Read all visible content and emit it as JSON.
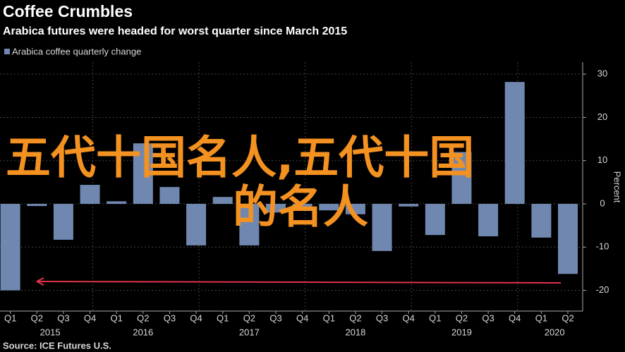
{
  "chart_data": {
    "type": "bar",
    "title": "Coffee Crumbles",
    "subtitle": "Arabica futures were headed for worst quarter since March 2015",
    "series": [
      {
        "name": "Arabica coffee quarterly change",
        "color": "#7088b0",
        "values": [
          -20,
          -0.5,
          -8.3,
          4.4,
          0.6,
          14,
          3.9,
          -9.6,
          1.6,
          -9.6,
          -2,
          -1,
          -1.5,
          -2.4,
          -10.9,
          -0.6,
          -7.2,
          12,
          -7.5,
          28.2,
          -7.8,
          -16.2
        ]
      }
    ],
    "categories": [
      "Q1",
      "Q2",
      "Q3",
      "Q4",
      "Q1",
      "Q2",
      "Q3",
      "Q4",
      "Q1",
      "Q2",
      "Q3",
      "Q4",
      "Q1",
      "Q2",
      "Q3",
      "Q4",
      "Q1",
      "Q2",
      "Q3",
      "Q4",
      "Q1",
      "Q2"
    ],
    "years": [
      "2015",
      null,
      null,
      null,
      "2016",
      null,
      null,
      null,
      "2017",
      null,
      null,
      null,
      "2018",
      null,
      null,
      null,
      "2019",
      null,
      null,
      null,
      "2020",
      null
    ],
    "ylim": [
      -24.8,
      32.8
    ],
    "yticks": [
      -20,
      -10,
      0,
      10,
      20,
      30
    ],
    "y_label": "Percent",
    "source": "Source: ICE Futures U.S.",
    "annotations": [
      "五代十国名人,五代十国",
      "的名人"
    ],
    "grid": true
  }
}
